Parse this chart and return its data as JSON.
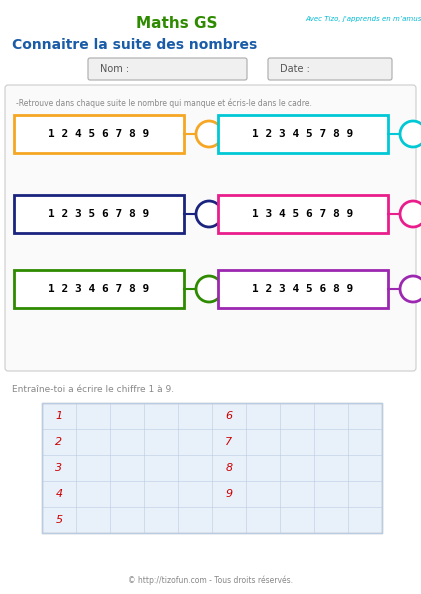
{
  "title": "Maths GS",
  "subtitle": "Avec Tizo, j'apprends en m’amusant!",
  "main_title": "Connaitre la suite des nombres",
  "title_color": "#2e8b00",
  "subtitle_color": "#00bcd4",
  "main_title_color": "#1a5ca8",
  "instruction": "-Retrouve dans chaque suite le nombre qui manque et écris-le dans le cadre.",
  "nom_label": "Nom :",
  "date_label": "Date :",
  "sequences": [
    {
      "numbers": "1 2 4 5 6 7 8 9",
      "color": "#f5a623"
    },
    {
      "numbers": "1 2 3 4 5 7 8 9",
      "color": "#00c8d4"
    },
    {
      "numbers": "1 2 3 5 6 7 8 9",
      "color": "#1a237e"
    },
    {
      "numbers": "1 3 4 5 6 7 8 9",
      "color": "#e91e8c"
    },
    {
      "numbers": "1 2 3 4 6 7 8 9",
      "color": "#2e8b00"
    },
    {
      "numbers": "1 2 3 4 5 6 8 9",
      "color": "#9c27b0"
    }
  ],
  "practice_label": "Entraîne-toi a écrire le chiffre 1 à 9.",
  "practice_numbers_left": [
    "1",
    "2",
    "3",
    "4",
    "5"
  ],
  "practice_numbers_right": [
    "6",
    "7",
    "8",
    "9"
  ],
  "footer": "© http://tizofun.com - Tous droits réservés.",
  "bg_color": "#ffffff",
  "grid_color": "#b8cce4",
  "grid_bg": "#e8f0fa"
}
